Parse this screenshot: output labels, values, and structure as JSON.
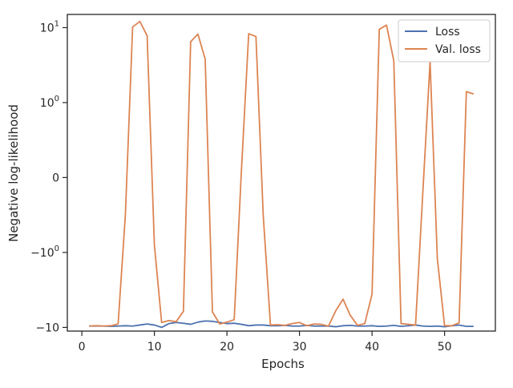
{
  "chart_data": {
    "type": "line",
    "xlabel": "Epochs",
    "ylabel": "Negative log-likelihood",
    "yscale": "symlog",
    "xlim": [
      -2,
      57
    ],
    "ylim": [
      -11.2,
      15
    ],
    "grid": false,
    "legend_position": "top-right",
    "x_ticks": [
      {
        "value": 0,
        "label": "0"
      },
      {
        "value": 10,
        "label": "10"
      },
      {
        "value": 20,
        "label": "20"
      },
      {
        "value": 30,
        "label": "30"
      },
      {
        "value": 40,
        "label": "40"
      },
      {
        "value": 50,
        "label": "50"
      }
    ],
    "y_ticks": [
      {
        "value": -10,
        "base": "−10",
        "exp": ""
      },
      {
        "value": -1,
        "base": "−10",
        "exp": "0"
      },
      {
        "value": 0,
        "base": "0",
        "exp": ""
      },
      {
        "value": 1,
        "base": "10",
        "exp": "0"
      },
      {
        "value": 10,
        "base": "10",
        "exp": "1"
      }
    ],
    "x": [
      1,
      2,
      3,
      4,
      5,
      6,
      7,
      8,
      9,
      10,
      11,
      12,
      13,
      14,
      15,
      16,
      17,
      18,
      19,
      20,
      21,
      22,
      23,
      24,
      25,
      26,
      27,
      28,
      29,
      30,
      31,
      32,
      33,
      34,
      35,
      36,
      37,
      38,
      39,
      40,
      41,
      42,
      43,
      44,
      45,
      46,
      47,
      48,
      49,
      50,
      51,
      52,
      53,
      54
    ],
    "series": [
      {
        "name": "Loss",
        "color": "#4c72b0",
        "values": [
          -9.6,
          -9.6,
          -9.6,
          -9.7,
          -9.6,
          -9.5,
          -9.6,
          -9.3,
          -9.0,
          -9.3,
          -10.0,
          -8.9,
          -8.6,
          -8.8,
          -9.1,
          -8.5,
          -8.2,
          -8.3,
          -8.6,
          -8.9,
          -8.8,
          -9.1,
          -9.5,
          -9.3,
          -9.3,
          -9.5,
          -9.5,
          -9.4,
          -9.6,
          -9.6,
          -9.4,
          -9.6,
          -9.6,
          -9.6,
          -9.8,
          -9.5,
          -9.4,
          -9.6,
          -9.6,
          -9.5,
          -9.7,
          -9.6,
          -9.4,
          -9.7,
          -9.5,
          -9.3,
          -9.6,
          -9.7,
          -9.6,
          -9.8,
          -9.5,
          -9.3,
          -9.7,
          -9.7
        ]
      },
      {
        "name": "Val. loss",
        "color": "#dd8452",
        "values": [
          -9.6,
          -9.5,
          -9.6,
          -9.5,
          -9.0,
          -0.5,
          10.2,
          12.1,
          7.8,
          -0.9,
          -8.6,
          -8.1,
          -8.4,
          -6.1,
          6.5,
          8.2,
          3.8,
          -6.2,
          -9.0,
          -8.5,
          -7.9,
          0.1,
          8.3,
          7.6,
          -0.5,
          -9.3,
          -9.2,
          -9.4,
          -8.9,
          -8.6,
          -9.5,
          -9.0,
          -9.1,
          -9.6,
          -6.0,
          -4.2,
          -6.9,
          -9.4,
          -8.9,
          -3.6,
          9.5,
          10.8,
          3.6,
          -8.9,
          -9.1,
          -9.3,
          -0.2,
          3.5,
          -1.2,
          -9.5,
          -9.5,
          -8.7,
          1.4,
          1.3
        ]
      }
    ]
  }
}
